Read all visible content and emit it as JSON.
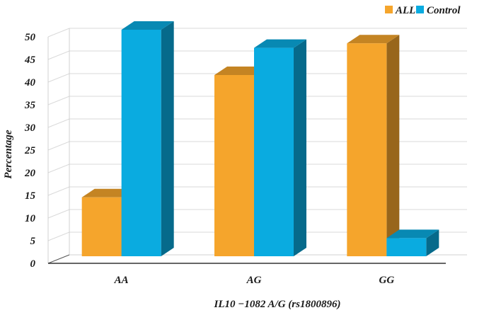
{
  "chart_data": {
    "type": "bar",
    "title": "",
    "xlabel": "IL10 −1082 A/G (rs1800896)",
    "ylabel": "Percentage",
    "categories": [
      "AA",
      "AG",
      "GG"
    ],
    "series": [
      {
        "name": "ALL",
        "values": [
          13,
          40,
          47
        ],
        "color": "#f5a52c"
      },
      {
        "name": "Control",
        "values": [
          50,
          46,
          4
        ],
        "color": "#0aabe0"
      }
    ],
    "ylim": [
      0,
      50
    ],
    "yticks": [
      0,
      5,
      10,
      15,
      20,
      25,
      30,
      35,
      40,
      45,
      50
    ],
    "grid": true,
    "legend_position": "top-right",
    "style": "3d-bar"
  }
}
